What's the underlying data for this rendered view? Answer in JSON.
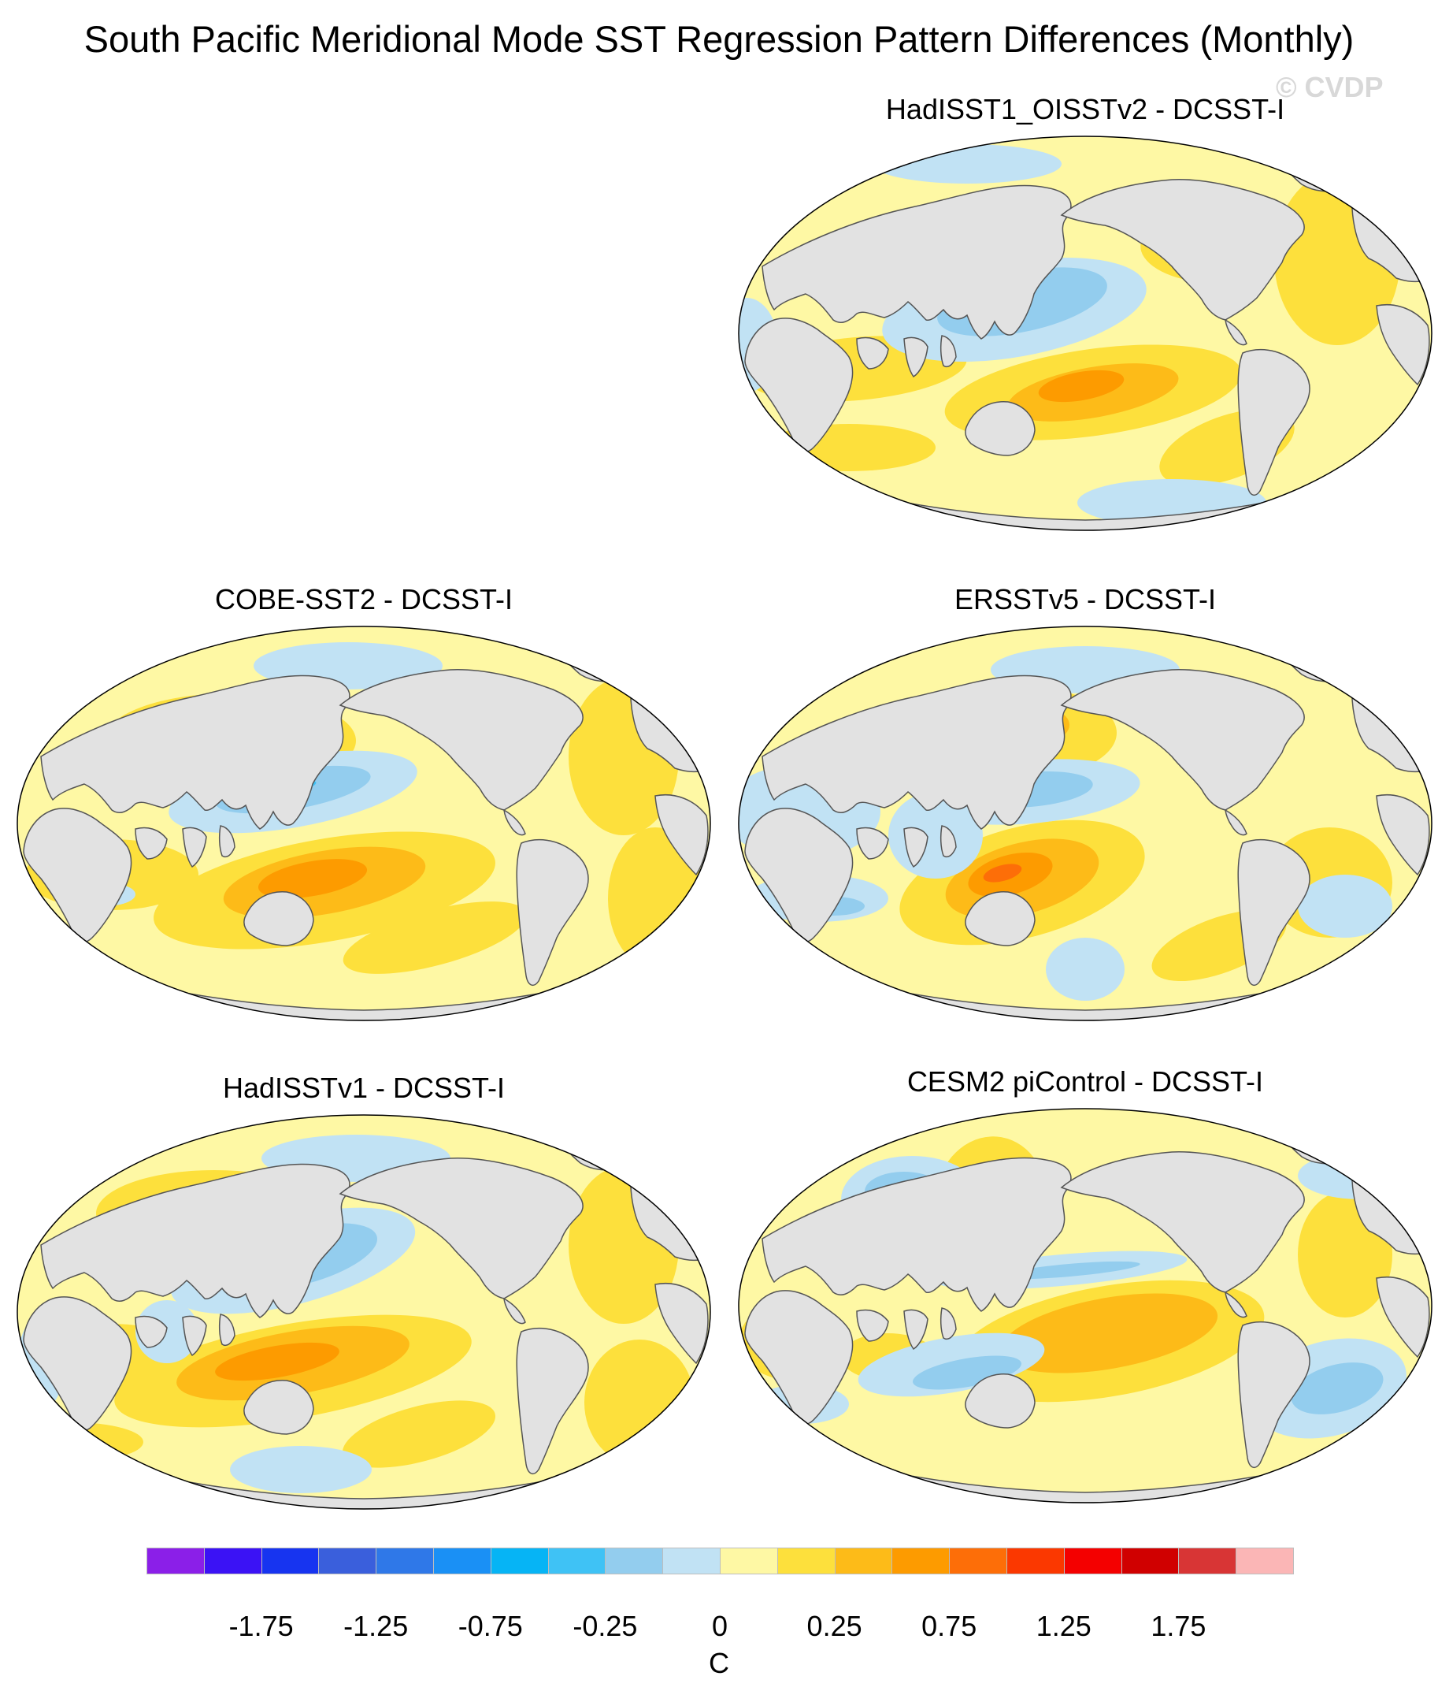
{
  "title": "South Pacific Meridional Mode SST Regression Pattern Differences (Monthly)",
  "watermark": "© CVDP",
  "panels": [
    {
      "id": "hadisst1-oisstv2",
      "title": "HadISST1_OISSTv2 - DCSST-I"
    },
    {
      "id": "cobe-sst2",
      "title": "COBE-SST2 - DCSST-I"
    },
    {
      "id": "ersstv5",
      "title": "ERSSTv5 - DCSST-I"
    },
    {
      "id": "hadisstv1",
      "title": "HadISSTv1 - DCSST-I"
    },
    {
      "id": "cesm2-picontrol",
      "title": "CESM2 piControl - DCSST-I"
    }
  ],
  "colorbar": {
    "units": "C",
    "labels": [
      "-1.75",
      "-1.25",
      "-0.75",
      "-0.25",
      "0",
      "0.25",
      "0.75",
      "1.25",
      "1.75"
    ],
    "colors": [
      "#8b1fe8",
      "#3b12f5",
      "#1734f0",
      "#3a5fdc",
      "#2f78e8",
      "#1a90f5",
      "#06b4f5",
      "#3fc2f5",
      "#93cdee",
      "#c1e2f4",
      "#fef8a4",
      "#fde03c",
      "#fdbb18",
      "#fd9b00",
      "#fd6e08",
      "#fb3800",
      "#f40000",
      "#d00000",
      "#d83535",
      "#fbb6b6"
    ]
  },
  "map_colors": {
    "land": "#e2e2e2",
    "ocean_background": "#fef8a4",
    "warm": "#fde03c",
    "warmer": "#fdbb18",
    "hot": "#fd9b00",
    "hotter": "#fd6e08",
    "cool": "#c1e2f4",
    "cooler": "#93cdee",
    "coldest": "#3fc2f5"
  }
}
